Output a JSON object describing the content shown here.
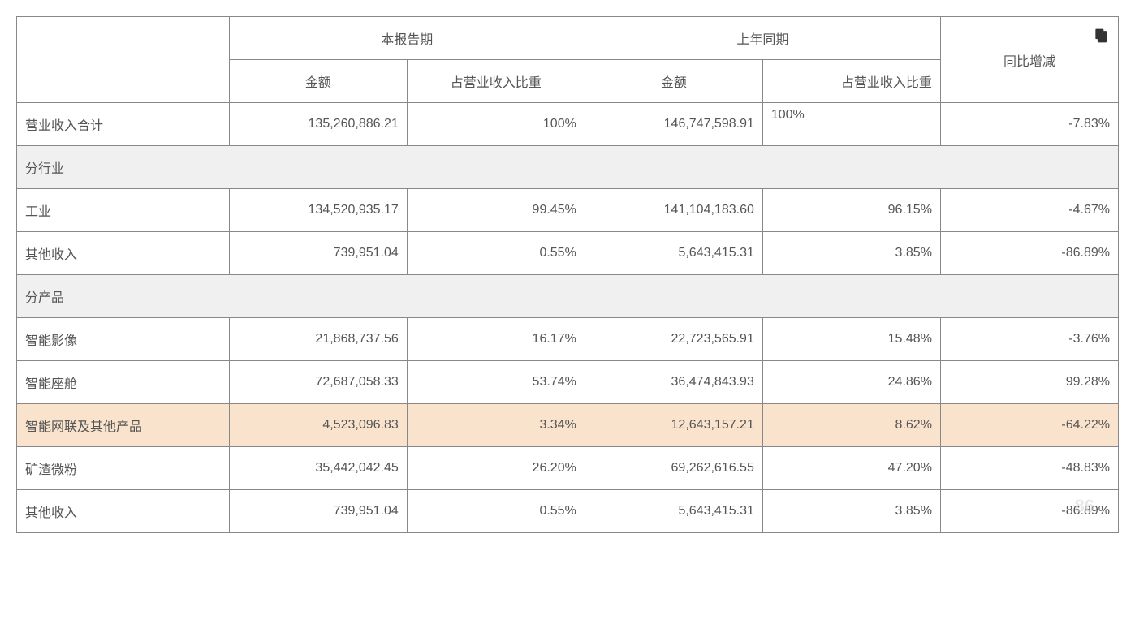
{
  "table": {
    "header": {
      "current_period": "本报告期",
      "prior_period": "上年同期",
      "yoy_change": "同比增减",
      "amount": "金额",
      "revenue_ratio": "占营业收入比重"
    },
    "total_row": {
      "label": "营业收入合计",
      "current_amount": "135,260,886.21",
      "current_ratio": "100%",
      "prior_amount": "146,747,598.91",
      "prior_ratio": "100%",
      "change": "-7.83%"
    },
    "sections": [
      {
        "title": "分行业",
        "rows": [
          {
            "label": "工业",
            "current_amount": "134,520,935.17",
            "current_ratio": "99.45%",
            "prior_amount": "141,104,183.60",
            "prior_ratio": "96.15%",
            "change": "-4.67%",
            "highlight": false
          },
          {
            "label": "其他收入",
            "current_amount": "739,951.04",
            "current_ratio": "0.55%",
            "prior_amount": "5,643,415.31",
            "prior_ratio": "3.85%",
            "change": "-86.89%",
            "highlight": false
          }
        ]
      },
      {
        "title": "分产品",
        "rows": [
          {
            "label": "智能影像",
            "current_amount": "21,868,737.56",
            "current_ratio": "16.17%",
            "prior_amount": "22,723,565.91",
            "prior_ratio": "15.48%",
            "change": "-3.76%",
            "highlight": false
          },
          {
            "label": "智能座舱",
            "current_amount": "72,687,058.33",
            "current_ratio": "53.74%",
            "prior_amount": "36,474,843.93",
            "prior_ratio": "24.86%",
            "change": "99.28%",
            "highlight": false
          },
          {
            "label": "智能网联及其他产品",
            "current_amount": "4,523,096.83",
            "current_ratio": "3.34%",
            "prior_amount": "12,643,157.21",
            "prior_ratio": "8.62%",
            "change": "-64.22%",
            "highlight": true
          },
          {
            "label": "矿渣微粉",
            "current_amount": "35,442,042.45",
            "current_ratio": "26.20%",
            "prior_amount": "69,262,616.55",
            "prior_ratio": "47.20%",
            "change": "-48.83%",
            "highlight": false
          },
          {
            "label": "其他收入",
            "current_amount": "739,951.04",
            "current_ratio": "0.55%",
            "prior_amount": "5,643,415.31",
            "prior_ratio": "3.85%",
            "change": "-86.89%",
            "highlight": false
          }
        ]
      }
    ]
  },
  "watermark": "86"
}
